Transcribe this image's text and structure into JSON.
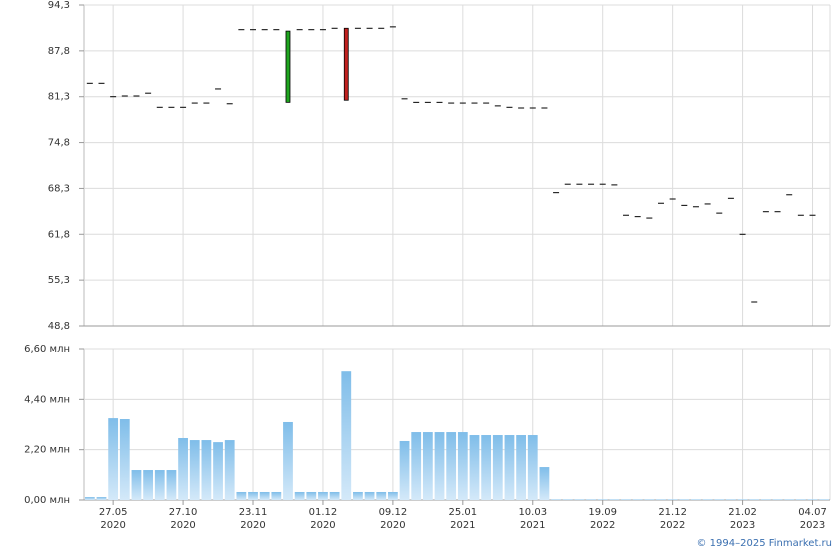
{
  "chart_data": [
    {
      "type": "candlestick",
      "open": [
        83.2,
        83.2,
        81.3,
        81.4,
        81.4,
        81.8,
        79.8,
        79.8,
        79.8,
        80.4,
        80.4,
        82.4,
        80.3,
        90.8,
        90.8,
        90.8,
        90.8,
        80.5,
        90.8,
        90.8,
        90.8,
        91.0,
        91.0,
        91.0,
        91.0,
        91.0,
        91.2,
        81.0,
        80.5,
        80.5,
        80.5,
        80.4,
        80.4,
        80.4,
        80.4,
        80.0,
        79.8,
        79.7,
        79.7,
        79.7,
        67.7,
        68.9,
        68.9,
        68.9,
        68.9,
        68.8,
        64.5,
        64.3,
        64.1,
        66.2,
        66.8,
        65.9,
        65.7,
        66.1,
        64.8,
        66.9,
        61.8,
        52.2,
        65.0,
        65.0,
        67.4,
        64.5,
        64.5,
        null
      ],
      "close": [
        83.2,
        83.2,
        81.3,
        81.4,
        81.4,
        81.8,
        79.8,
        79.8,
        79.8,
        80.4,
        80.4,
        82.4,
        80.3,
        90.8,
        90.8,
        90.8,
        90.8,
        90.6,
        90.8,
        90.8,
        90.8,
        91.0,
        80.8,
        91.0,
        91.0,
        91.0,
        91.2,
        81.0,
        80.5,
        80.5,
        80.5,
        80.4,
        80.4,
        80.4,
        80.4,
        80.0,
        79.8,
        79.7,
        79.7,
        79.7,
        67.7,
        68.9,
        68.9,
        68.9,
        68.9,
        68.8,
        64.5,
        64.3,
        64.1,
        66.2,
        66.8,
        65.9,
        65.7,
        66.1,
        64.8,
        66.9,
        61.8,
        52.2,
        65.0,
        65.0,
        67.4,
        64.5,
        64.5,
        null
      ],
      "up_color": "#1fa51f",
      "down_color": "#c0211f",
      "flat_color": "#000000",
      "ylim": [
        48.8,
        94.3
      ],
      "yticks": [
        {
          "value": 48.8,
          "label": "48,8"
        },
        {
          "value": 55.3,
          "label": "55,3"
        },
        {
          "value": 61.8,
          "label": "61,8"
        },
        {
          "value": 68.3,
          "label": "68,3"
        },
        {
          "value": 74.8,
          "label": "74,8"
        },
        {
          "value": 81.3,
          "label": "81,3"
        },
        {
          "value": 87.8,
          "label": "87,8"
        },
        {
          "value": 94.3,
          "label": "94,3"
        }
      ],
      "grid": true
    },
    {
      "type": "bar",
      "categories": [
        null,
        null,
        "27.05",
        null,
        null,
        null,
        null,
        null,
        "27.10",
        null,
        null,
        null,
        null,
        null,
        "23.11",
        null,
        null,
        null,
        null,
        null,
        "01.12",
        null,
        null,
        null,
        null,
        null,
        "09.12",
        null,
        null,
        null,
        null,
        null,
        "25.01",
        null,
        null,
        null,
        null,
        null,
        "10.03",
        null,
        null,
        null,
        null,
        null,
        "19.09",
        null,
        null,
        null,
        null,
        null,
        "21.12",
        null,
        null,
        null,
        null,
        null,
        "21.02",
        null,
        null,
        null,
        null,
        null,
        "04.07",
        null
      ],
      "category_years": [
        null,
        null,
        "2020",
        null,
        null,
        null,
        null,
        null,
        "2020",
        null,
        null,
        null,
        null,
        null,
        "2020",
        null,
        null,
        null,
        null,
        null,
        "2020",
        null,
        null,
        null,
        null,
        null,
        "2020",
        null,
        null,
        null,
        null,
        null,
        "2021",
        null,
        null,
        null,
        null,
        null,
        "2021",
        null,
        null,
        null,
        null,
        null,
        "2022",
        null,
        null,
        null,
        null,
        null,
        "2022",
        null,
        null,
        null,
        null,
        null,
        "2023",
        null,
        null,
        null,
        null,
        null,
        "2023",
        null
      ],
      "values": [
        0.13,
        0.13,
        3.58,
        3.54,
        1.31,
        1.31,
        1.31,
        1.31,
        2.71,
        2.62,
        2.62,
        2.53,
        2.62,
        0.35,
        0.35,
        0.35,
        0.35,
        3.41,
        0.35,
        0.35,
        0.35,
        0.35,
        5.63,
        0.35,
        0.35,
        0.35,
        0.35,
        2.58,
        2.97,
        2.97,
        2.97,
        2.97,
        2.97,
        2.84,
        2.84,
        2.84,
        2.84,
        2.84,
        2.84,
        1.44,
        0.03,
        0.03,
        0.03,
        0.03,
        0.03,
        0.03,
        0.03,
        0.03,
        0.03,
        0.03,
        0.03,
        0.03,
        0.03,
        0.03,
        0.03,
        0.03,
        0.03,
        0.03,
        0.03,
        0.03,
        0.03,
        0.03,
        0.03,
        0.03
      ],
      "color": "#7fbde9",
      "ylim": [
        0,
        6.6
      ],
      "yticks": [
        {
          "value": 0,
          "label": "0,00 млн"
        },
        {
          "value": 2.2,
          "label": "2,20 млн"
        },
        {
          "value": 4.4,
          "label": "4,40 млн"
        },
        {
          "value": 6.6,
          "label": "6,60 млн"
        }
      ],
      "grid": true
    }
  ],
  "copyright": "© 1994–2025 Finmarket.ru"
}
